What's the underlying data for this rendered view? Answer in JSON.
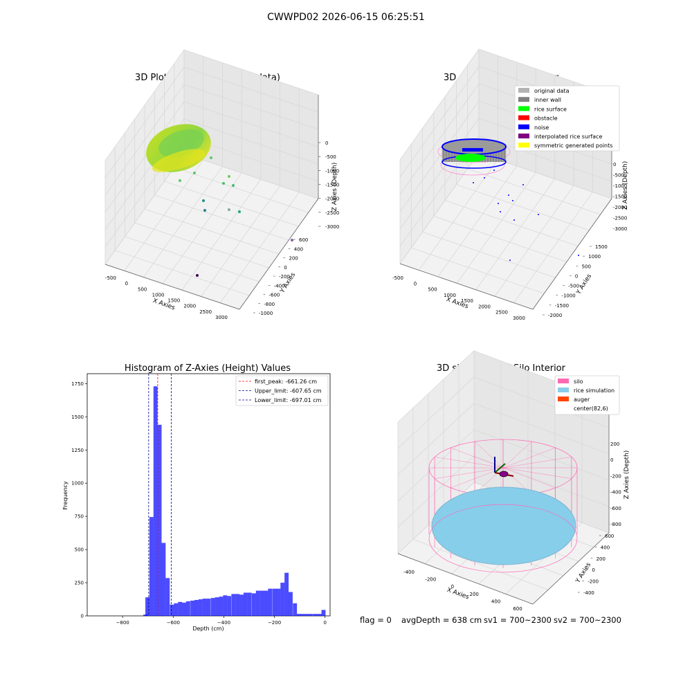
{
  "suptitle": "CWWPD02 2026-06-15 06:25:51",
  "footer": {
    "flag": "flag = 0",
    "avg_depth": "avgDepth = 638 cm",
    "sv1": "sv1 = 700~2300",
    "sv2": "sv2 = 700~2300"
  },
  "chart_data": [
    {
      "type": "scatter3d",
      "title": "3D Plot of Silo Interior(row data)",
      "xlabel": "X Axies",
      "ylabel": "Y Axies",
      "zlabel": "Z Axies (Depth)",
      "x_ticks": [
        "-500",
        "0",
        "500",
        "1000",
        "1500",
        "2000",
        "2500",
        "3000"
      ],
      "y_ticks": [
        "-1000",
        "-800",
        "-600",
        "-400",
        "-200",
        "0",
        "200",
        "400",
        "600"
      ],
      "z_ticks": [
        "0",
        "-500",
        "-1000",
        "-1500",
        "-2000",
        "-2500",
        "-3000"
      ],
      "colormap": "viridis (purple to yellow by depth)",
      "grid": true
    },
    {
      "type": "scatter3d",
      "title": "3D classify of Silo Interior",
      "xlabel": "X Axies",
      "ylabel": "Y Axies",
      "zlabel": "Z Axies (Depth)",
      "x_ticks": [
        "-500",
        "0",
        "500",
        "1000",
        "1500",
        "2000",
        "2500",
        "3000"
      ],
      "y_ticks": [
        "-2000",
        "-1500",
        "-1000",
        "-500",
        "0",
        "500",
        "1000",
        "1500"
      ],
      "z_ticks": [
        "0",
        "-500",
        "-1000",
        "-1500",
        "-2000",
        "-2500",
        "-3000"
      ],
      "legend_position": "top-right",
      "legend": [
        {
          "label": "original data",
          "color": "#b3b3b3"
        },
        {
          "label": "inner wall",
          "color": "#808080"
        },
        {
          "label": "rice surface",
          "color": "#00ff00"
        },
        {
          "label": "obstacle",
          "color": "#ff0000"
        },
        {
          "label": "noise",
          "color": "#0000ff"
        },
        {
          "label": "interpolated rice surface",
          "color": "#800080"
        },
        {
          "label": "symmetric generated points",
          "color": "#ffff00"
        }
      ],
      "grid": true
    },
    {
      "type": "bar",
      "title": "Histogram of Z-Axies (Height) Values",
      "xlabel": "Depth (cm)",
      "ylabel": "Frequency",
      "xlim": [
        -940,
        20
      ],
      "ylim": [
        0,
        1825
      ],
      "x_ticks": [
        -800,
        -600,
        -400,
        -200,
        0
      ],
      "y_ticks": [
        0,
        250,
        500,
        750,
        1000,
        1250,
        1500,
        1750
      ],
      "bar_color": "#0000ff",
      "bin_width": 16.2,
      "bins": [
        {
          "x": -710,
          "y": 10
        },
        {
          "x": -702,
          "y": 140
        },
        {
          "x": -686,
          "y": 745
        },
        {
          "x": -670,
          "y": 1730
        },
        {
          "x": -654,
          "y": 1440
        },
        {
          "x": -638,
          "y": 550
        },
        {
          "x": -622,
          "y": 285
        },
        {
          "x": -605,
          "y": 85
        },
        {
          "x": -589,
          "y": 95
        },
        {
          "x": -573,
          "y": 105
        },
        {
          "x": -557,
          "y": 100
        },
        {
          "x": -541,
          "y": 110
        },
        {
          "x": -524,
          "y": 115
        },
        {
          "x": -508,
          "y": 120
        },
        {
          "x": -492,
          "y": 125
        },
        {
          "x": -476,
          "y": 130
        },
        {
          "x": -460,
          "y": 130
        },
        {
          "x": -443,
          "y": 135
        },
        {
          "x": -427,
          "y": 140
        },
        {
          "x": -411,
          "y": 145
        },
        {
          "x": -395,
          "y": 155
        },
        {
          "x": -379,
          "y": 150
        },
        {
          "x": -362,
          "y": 165
        },
        {
          "x": -346,
          "y": 165
        },
        {
          "x": -330,
          "y": 160
        },
        {
          "x": -314,
          "y": 175
        },
        {
          "x": -298,
          "y": 175
        },
        {
          "x": -281,
          "y": 170
        },
        {
          "x": -265,
          "y": 190
        },
        {
          "x": -249,
          "y": 190
        },
        {
          "x": -233,
          "y": 190
        },
        {
          "x": -217,
          "y": 205
        },
        {
          "x": -200,
          "y": 205
        },
        {
          "x": -184,
          "y": 205
        },
        {
          "x": -168,
          "y": 250
        },
        {
          "x": -152,
          "y": 325
        },
        {
          "x": -136,
          "y": 180
        },
        {
          "x": -119,
          "y": 95
        },
        {
          "x": -103,
          "y": 15
        },
        {
          "x": -87,
          "y": 15
        },
        {
          "x": -71,
          "y": 15
        },
        {
          "x": -55,
          "y": 15
        },
        {
          "x": -38,
          "y": 15
        },
        {
          "x": -22,
          "y": 15
        },
        {
          "x": -6,
          "y": 45
        }
      ],
      "reference_lines": [
        {
          "label": "first_peak: -661.26 cm",
          "x": -661.26,
          "color": "#ff0000",
          "style": "dashed"
        },
        {
          "label": "Upper_limit: -607.65 cm",
          "x": -607.65,
          "color": "#00008b",
          "style": "dashed"
        },
        {
          "label": "Lower_limit: -697.01 cm",
          "x": -697.01,
          "color": "#00008b",
          "style": "dashed"
        }
      ],
      "legend_position": "top-right",
      "grid": false
    },
    {
      "type": "surface3d",
      "title": "3D simulation of Silo Interior",
      "xlabel": "X Axies",
      "ylabel": "Y Axies",
      "zlabel": "Z Axies (Depth)",
      "x_ticks": [
        "-400",
        "-200",
        "0",
        "200",
        "400",
        "600"
      ],
      "y_ticks": [
        "-400",
        "-200",
        "0",
        "200",
        "400",
        "600"
      ],
      "z_ticks": [
        "200",
        "0",
        "-200",
        "-400",
        "-600",
        "-800"
      ],
      "legend_position": "top-right",
      "legend": [
        {
          "label": "silo",
          "color": "#ff69b4"
        },
        {
          "label": "rice simulation",
          "color": "#87ceeb"
        },
        {
          "label": "auger",
          "color": "#ff4500"
        },
        {
          "label": "center(82,6)",
          "color": ""
        }
      ],
      "grid": true
    }
  ]
}
